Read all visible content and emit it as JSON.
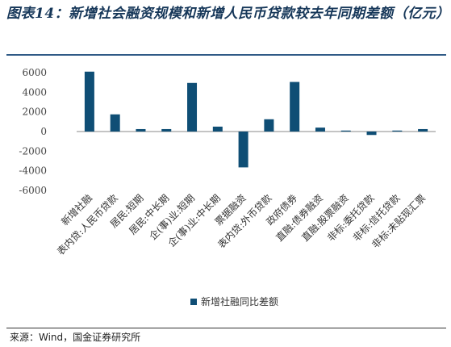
{
  "title": "图表14：新增社会融资规模和新增人民币贷款较去年同期差额（亿元）",
  "source": "来源：Wind，国金证券研究所",
  "colors": {
    "bar": "#0f4e75",
    "title": "#163759",
    "axis": "#888888"
  },
  "chart_data": {
    "type": "bar",
    "categories": [
      "新增社融",
      "表内贷:人民币贷款",
      "居民:短期",
      "居民:中长期",
      "企(事)业:短期",
      "企(事)业:中长期",
      "票据融资",
      "表内贷:外币贷款",
      "政府债券",
      "直融:债券融资",
      "直融:股票融资",
      "非标:委托贷款",
      "非标:信托贷款",
      "非标:未贴现汇票"
    ],
    "series": [
      {
        "name": "新增社融同比差额",
        "values": [
          6100,
          1750,
          250,
          250,
          4950,
          500,
          -3650,
          1250,
          5050,
          400,
          100,
          -350,
          100,
          250
        ]
      }
    ],
    "yticks": [
      6000,
      4000,
      2000,
      0,
      -2000,
      -4000,
      -6000
    ],
    "ylim": [
      -6000,
      6000
    ],
    "legend_position": "bottom",
    "grid": false
  }
}
